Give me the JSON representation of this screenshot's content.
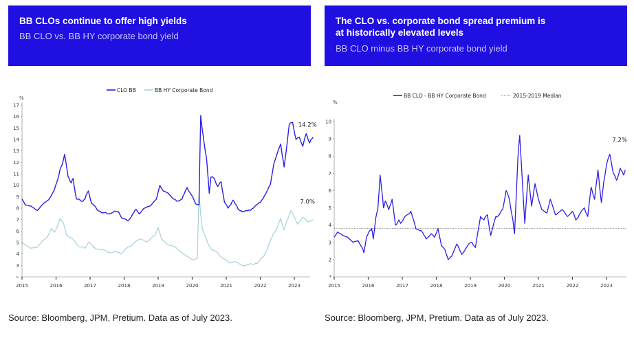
{
  "left_panel": {
    "title": "BB CLOs continue to offer high yields",
    "subtitle": "BB CLO vs. BB HY corporate bond yield",
    "source": "Source: Bloomberg, JPM, Pretium. Data as of July 2023."
  },
  "right_panel": {
    "title_line1": "The CLO vs. corporate bond spread premium is",
    "title_line2": "at historically elevated levels",
    "subtitle": "BB CLO minus BB HY corporate bond yield",
    "source": "Source: Bloomberg, JPM, Pretium. Data as of July 2023."
  },
  "colors": {
    "banner": "#1f0fe0",
    "banner_subtitle": "#c9c4fb",
    "clo_line": "#2a1ee6",
    "hy_line": "#a8d0dc",
    "median_line": "#555555",
    "axis": "#bbbbbb"
  },
  "chart_data": [
    {
      "type": "line",
      "title": "BB CLO vs. BB HY corporate bond yield",
      "ylabel": "%",
      "xlabel": "",
      "ylim": [
        2,
        17
      ],
      "xlim": [
        2015.0,
        2023.58
      ],
      "yticks": [
        "2",
        "3",
        "4",
        "5",
        "6",
        "7",
        "8",
        "9",
        "10",
        "11",
        "12",
        "13",
        "14",
        "15",
        "16",
        "17"
      ],
      "ytick_values": [
        2,
        3,
        4,
        5,
        6,
        7,
        8,
        9,
        10,
        11,
        12,
        13,
        14,
        15,
        16,
        17
      ],
      "ytick_display": [
        "~",
        "3",
        "4",
        "5",
        "6",
        "7",
        "8",
        "9",
        "10",
        "11",
        "12",
        "13",
        "14",
        "15",
        "16",
        "17"
      ],
      "xticks": [
        "2015",
        "2016",
        "2017",
        "2018",
        "2019",
        "2020",
        "2021",
        "2022",
        "2023"
      ],
      "xtick_values": [
        2015,
        2016,
        2017,
        2018,
        2019,
        2020,
        2021,
        2022,
        2023
      ],
      "legend": [
        "CLO BB",
        "BB HY Corporate Bond"
      ],
      "legend_position": "top-center",
      "grid": false,
      "annotations": [
        {
          "text": "14.2%",
          "series": "CLO BB"
        },
        {
          "text": "7.0%",
          "series": "BB HY Corporate Bond"
        }
      ],
      "series": [
        {
          "name": "CLO BB",
          "x": [
            2015.0,
            2015.1,
            2015.3,
            2015.45,
            2015.6,
            2015.8,
            2015.95,
            2016.05,
            2016.12,
            2016.18,
            2016.25,
            2016.35,
            2016.45,
            2016.5,
            2016.6,
            2016.75,
            2016.85,
            2016.95,
            2017.05,
            2017.2,
            2017.4,
            2017.5,
            2017.7,
            2017.85,
            2017.95,
            2018.1,
            2018.2,
            2018.35,
            2018.45,
            2018.6,
            2018.8,
            2018.95,
            2019.05,
            2019.15,
            2019.3,
            2019.45,
            2019.55,
            2019.7,
            2019.85,
            2019.95,
            2020.1,
            2020.2,
            2020.25,
            2020.3,
            2020.35,
            2020.42,
            2020.5,
            2020.55,
            2020.65,
            2020.75,
            2020.85,
            2020.95,
            2021.05,
            2021.2,
            2021.35,
            2021.5,
            2021.7,
            2021.85,
            2022.0,
            2022.15,
            2022.3,
            2022.4,
            2022.5,
            2022.6,
            2022.7,
            2022.75,
            2022.85,
            2022.95,
            2023.05,
            2023.15,
            2023.25,
            2023.35,
            2023.45,
            2023.55
          ],
          "y": [
            8.8,
            8.3,
            8.1,
            7.8,
            8.3,
            8.8,
            9.6,
            10.5,
            11.4,
            11.8,
            12.7,
            10.8,
            10.2,
            10.6,
            8.8,
            8.6,
            8.8,
            9.5,
            8.4,
            7.9,
            7.6,
            7.5,
            7.7,
            7.6,
            7.1,
            6.9,
            7.2,
            7.9,
            7.5,
            8.0,
            8.3,
            8.8,
            10.0,
            9.5,
            9.3,
            8.8,
            8.6,
            8.8,
            9.8,
            9.3,
            8.4,
            8.3,
            16.1,
            14.8,
            13.7,
            12.4,
            9.3,
            10.7,
            10.6,
            9.9,
            10.3,
            8.5,
            8.0,
            8.7,
            7.9,
            7.7,
            7.8,
            8.2,
            8.5,
            9.2,
            10.1,
            11.9,
            12.8,
            13.6,
            11.6,
            12.7,
            15.3,
            15.5,
            14.0,
            14.2,
            13.4,
            14.5,
            13.7,
            14.2
          ]
        },
        {
          "name": "BB HY Corporate Bond",
          "x": [
            2015.0,
            2015.1,
            2015.25,
            2015.45,
            2015.6,
            2015.75,
            2015.85,
            2015.95,
            2016.05,
            2016.12,
            2016.2,
            2016.3,
            2016.45,
            2016.55,
            2016.7,
            2016.85,
            2016.95,
            2017.1,
            2017.3,
            2017.5,
            2017.7,
            2017.9,
            2018.0,
            2018.15,
            2018.3,
            2018.5,
            2018.7,
            2018.9,
            2019.0,
            2019.1,
            2019.3,
            2019.5,
            2019.7,
            2019.85,
            2020.0,
            2020.15,
            2020.2,
            2020.25,
            2020.3,
            2020.35,
            2020.45,
            2020.6,
            2020.75,
            2020.9,
            2021.05,
            2021.2,
            2021.4,
            2021.6,
            2021.75,
            2021.95,
            2022.1,
            2022.25,
            2022.4,
            2022.5,
            2022.6,
            2022.7,
            2022.8,
            2022.9,
            2023.0,
            2023.1,
            2023.25,
            2023.4,
            2023.55
          ],
          "y": [
            5.0,
            4.8,
            4.5,
            4.6,
            5.1,
            5.5,
            6.2,
            5.9,
            6.5,
            7.1,
            6.8,
            5.7,
            5.4,
            5.1,
            4.6,
            4.5,
            5.0,
            4.6,
            4.4,
            4.2,
            4.2,
            4.0,
            4.3,
            4.6,
            5.0,
            5.3,
            5.1,
            5.6,
            6.3,
            5.3,
            4.8,
            4.6,
            4.1,
            3.8,
            3.5,
            3.6,
            9.5,
            7.4,
            6.2,
            5.8,
            5.0,
            4.3,
            4.1,
            3.6,
            3.3,
            3.3,
            3.1,
            3.0,
            3.1,
            3.3,
            3.8,
            4.8,
            5.8,
            6.3,
            7.1,
            6.1,
            7.0,
            7.8,
            7.2,
            6.6,
            7.2,
            6.8,
            7.0
          ]
        }
      ]
    },
    {
      "type": "line",
      "title": "BB CLO minus BB HY corporate bond yield",
      "ylabel": "%",
      "xlabel": "",
      "ylim": [
        1,
        10
      ],
      "xlim": [
        2015.0,
        2023.58
      ],
      "yticks": [
        "1",
        "2",
        "3",
        "4",
        "5",
        "6",
        "7",
        "8",
        "9",
        "10"
      ],
      "ytick_values": [
        1,
        2,
        3,
        4,
        5,
        6,
        7,
        8,
        9,
        10
      ],
      "ytick_display": [
        "*",
        "2",
        "3",
        "4",
        "5",
        "6",
        "7",
        "8",
        "9",
        "10"
      ],
      "xticks": [
        "2015",
        "2016",
        "2017",
        "2018",
        "2019",
        "2020",
        "2021",
        "2022",
        "2023"
      ],
      "xtick_values": [
        2015,
        2016,
        2017,
        2018,
        2019,
        2020,
        2021,
        2022,
        2023
      ],
      "legend": [
        "BB CLO - BB HY Corporate Bond",
        "2015-2019 Median"
      ],
      "legend_position": "top-center",
      "grid": false,
      "annotations": [
        {
          "text": "7.2%",
          "series": "BB CLO - BB HY Corporate Bond"
        }
      ],
      "median_value": 3.8,
      "series": [
        {
          "name": "BB CLO - BB HY Corporate Bond",
          "x": [
            2015.0,
            2015.1,
            2015.25,
            2015.4,
            2015.55,
            2015.7,
            2015.82,
            2015.87,
            2015.95,
            2016.05,
            2016.1,
            2016.15,
            2016.22,
            2016.28,
            2016.35,
            2016.45,
            2016.5,
            2016.6,
            2016.7,
            2016.8,
            2016.9,
            2016.95,
            2017.05,
            2017.15,
            2017.25,
            2017.4,
            2017.55,
            2017.7,
            2017.85,
            2017.95,
            2018.05,
            2018.15,
            2018.25,
            2018.35,
            2018.45,
            2018.6,
            2018.75,
            2018.95,
            2019.05,
            2019.15,
            2019.3,
            2019.4,
            2019.5,
            2019.6,
            2019.75,
            2019.85,
            2019.95,
            2020.05,
            2020.15,
            2020.2,
            2020.25,
            2020.3,
            2020.4,
            2020.45,
            2020.5,
            2020.6,
            2020.7,
            2020.8,
            2020.9,
            2021.0,
            2021.1,
            2021.25,
            2021.35,
            2021.5,
            2021.7,
            2021.85,
            2022.0,
            2022.1,
            2022.2,
            2022.35,
            2022.45,
            2022.55,
            2022.65,
            2022.75,
            2022.85,
            2022.92,
            2023.0,
            2023.1,
            2023.2,
            2023.3,
            2023.4,
            2023.5,
            2023.55
          ],
          "y": [
            3.3,
            3.6,
            3.4,
            3.3,
            3.0,
            3.1,
            2.7,
            2.4,
            3.3,
            3.7,
            3.8,
            3.2,
            4.4,
            4.9,
            6.9,
            5.0,
            5.4,
            4.9,
            5.5,
            4.0,
            4.3,
            4.1,
            4.4,
            4.6,
            4.8,
            3.8,
            3.7,
            3.2,
            3.5,
            3.3,
            3.8,
            2.8,
            2.6,
            2.0,
            2.2,
            2.9,
            2.3,
            2.9,
            3.0,
            2.7,
            4.5,
            4.3,
            4.6,
            3.4,
            4.5,
            4.6,
            4.9,
            6.0,
            5.5,
            4.8,
            4.3,
            3.5,
            8.0,
            9.2,
            7.5,
            4.1,
            6.9,
            5.1,
            6.4,
            5.5,
            4.9,
            4.7,
            5.5,
            4.6,
            4.9,
            4.5,
            4.8,
            4.3,
            4.6,
            5.0,
            4.5,
            6.2,
            5.5,
            7.2,
            5.3,
            6.5,
            7.5,
            8.1,
            7.0,
            6.6,
            7.3,
            6.9,
            7.2
          ]
        }
      ]
    }
  ]
}
